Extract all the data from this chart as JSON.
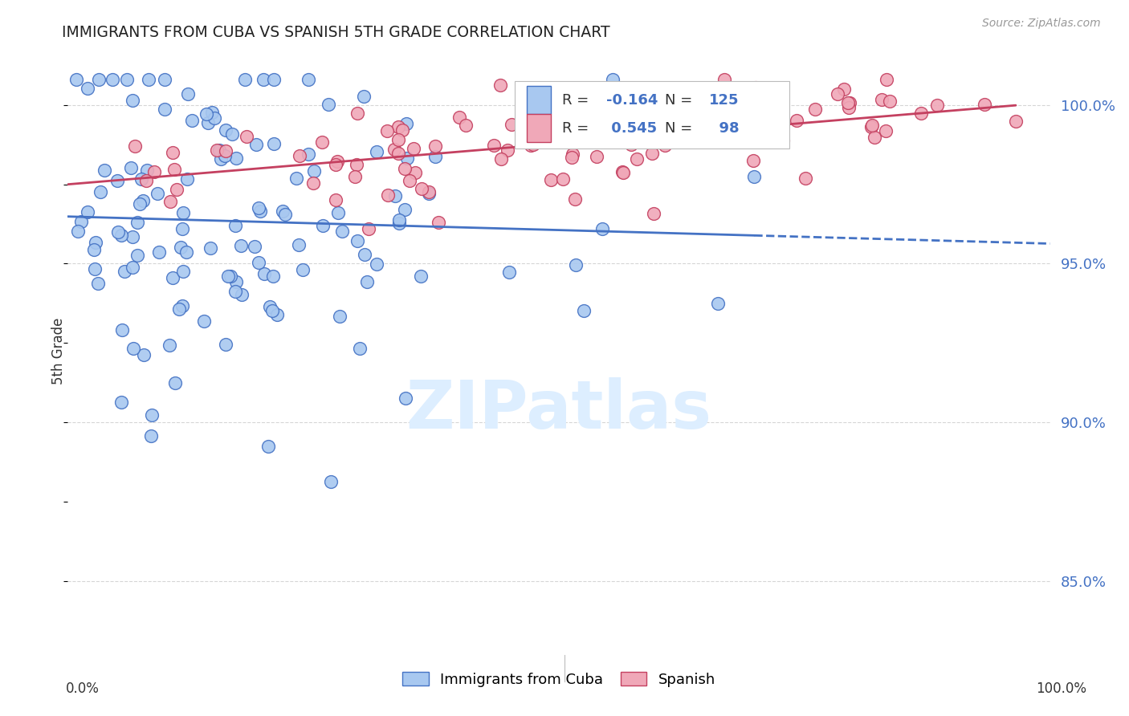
{
  "title": "IMMIGRANTS FROM CUBA VS SPANISH 5TH GRADE CORRELATION CHART",
  "source": "Source: ZipAtlas.com",
  "ylabel": "5th Grade",
  "yticks": [
    85.0,
    90.0,
    95.0,
    100.0
  ],
  "ytick_labels": [
    "85.0%",
    "90.0%",
    "95.0%",
    "100.0%"
  ],
  "r_blue": -0.164,
  "n_blue": 125,
  "r_pink": 0.545,
  "n_pink": 98,
  "blue_color": "#a8c8f0",
  "pink_color": "#f0a8b8",
  "blue_edge": "#4472c4",
  "pink_edge": "#c44060",
  "line_blue": "#4472c4",
  "line_pink": "#c44060",
  "tick_color": "#4472c4",
  "watermark_color": "#ddeeff",
  "watermark": "ZIPatlas",
  "background": "#ffffff",
  "grid_color": "#cccccc",
  "ylim_min": 83.0,
  "ylim_max": 101.5,
  "xlim_min": 0.0,
  "xlim_max": 1.0
}
